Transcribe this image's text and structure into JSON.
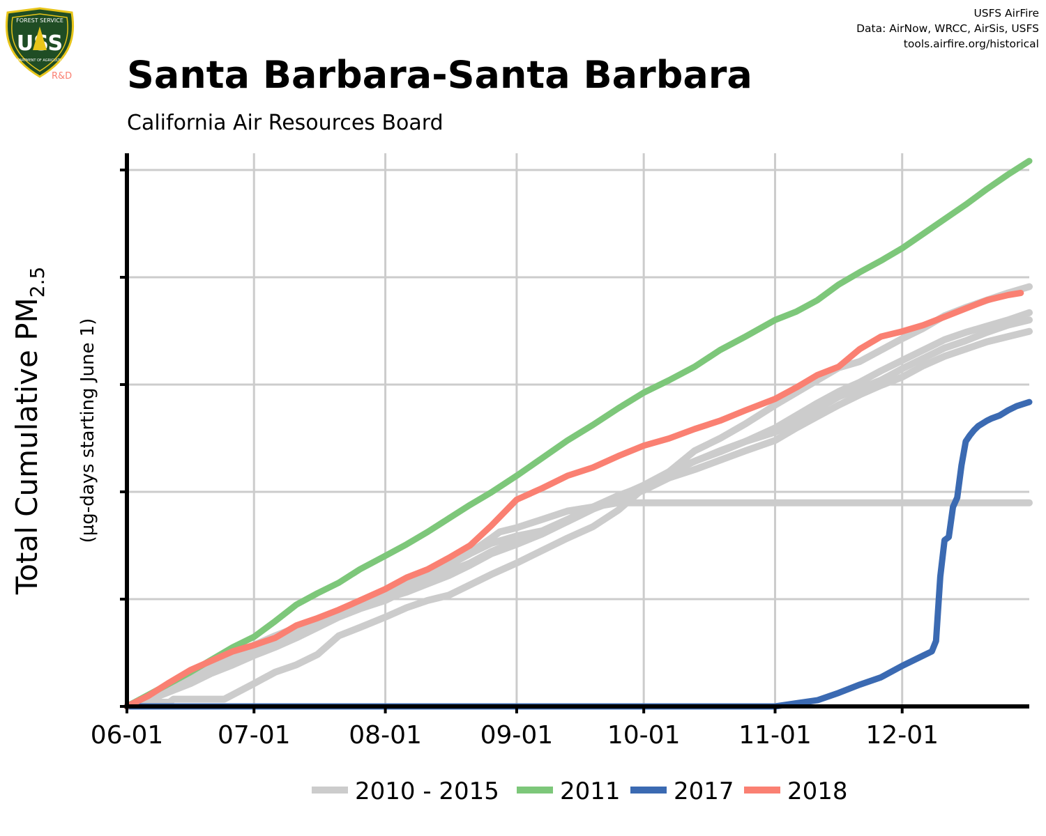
{
  "credits": [
    "USFS AirFire",
    "Data: AirNow, WRCC, AirSis, USFS",
    "tools.airfire.org/historical"
  ],
  "logo": {
    "top_text": "FOREST SERVICE",
    "letters": "USS",
    "bottom_text": "DEPARTMENT OF AGRICULTURE",
    "tag": "R&D",
    "icon": "usfs-shield-icon"
  },
  "colors": {
    "grid": "#cccccc",
    "hist": "#cccccc",
    "y2011": "#7dc77a",
    "y2017": "#3b6ab2",
    "y2018": "#fa8072",
    "axis": "#000000",
    "logo_bg": "#1f4d24",
    "logo_gold": "#e8c51a",
    "logo_tag": "#fa8072"
  },
  "chart_data": {
    "type": "line",
    "title": "Santa Barbara-Santa Barbara",
    "subtitle": "California Air Resources Board",
    "ylabel_main": "Total Cumulative PM",
    "ylabel_sub_script": "2.5",
    "ylabel_note": "(µg-days starting June 1)",
    "xlabel": "",
    "x_ticks": [
      "06-01",
      "07-01",
      "08-01",
      "09-01",
      "10-01",
      "11-01",
      "12-01"
    ],
    "x_tick_days": [
      0,
      30,
      61,
      92,
      122,
      153,
      183
    ],
    "xlim_days": [
      0,
      213
    ],
    "y_tick_count": 6,
    "ylim": [
      0,
      5.15
    ],
    "grid": true,
    "legend_position": "bottom",
    "legend": [
      "2010 - 2015",
      "2011",
      "2017",
      "2018"
    ],
    "series": [
      {
        "name": "2010 - 2015",
        "group": "hist",
        "x": [
          0,
          5,
          10,
          15,
          20,
          25,
          30,
          35,
          40,
          45,
          50,
          55,
          61,
          66,
          71,
          76,
          81,
          86,
          92,
          98,
          104,
          110,
          116,
          122,
          128,
          134,
          140,
          146,
          153,
          158,
          163,
          168,
          173,
          178,
          183,
          188,
          193,
          198,
          203,
          208,
          213
        ],
        "y": [
          0,
          0.06,
          0.14,
          0.22,
          0.32,
          0.4,
          0.49,
          0.57,
          0.66,
          0.76,
          0.86,
          0.94,
          1.02,
          1.12,
          1.21,
          1.3,
          1.38,
          1.49,
          1.59,
          1.68,
          1.78,
          1.9,
          2.02,
          2.13,
          2.26,
          2.36,
          2.46,
          2.55,
          2.64,
          2.74,
          2.86,
          2.98,
          3.06,
          3.14,
          3.25,
          3.35,
          3.45,
          3.52,
          3.6,
          3.67,
          3.72
        ]
      },
      {
        "name": "2010 - 2015",
        "group": "hist",
        "x": [
          0,
          5,
          10,
          15,
          20,
          25,
          30,
          35,
          40,
          45,
          50,
          55,
          61,
          66,
          71,
          76,
          81,
          86,
          92,
          98,
          104,
          110,
          116,
          122,
          128,
          134,
          140,
          146,
          153,
          158,
          163,
          168,
          173,
          178,
          183,
          188,
          193,
          198,
          203,
          208,
          213
        ],
        "y": [
          0,
          0.08,
          0.17,
          0.26,
          0.35,
          0.45,
          0.55,
          0.64,
          0.72,
          0.8,
          0.88,
          0.96,
          1.04,
          1.1,
          1.18,
          1.26,
          1.36,
          1.47,
          1.56,
          1.66,
          1.78,
          1.9,
          1.99,
          2.08,
          2.2,
          2.28,
          2.37,
          2.46,
          2.56,
          2.68,
          2.79,
          2.9,
          3.0,
          3.09,
          3.17,
          3.28,
          3.37,
          3.44,
          3.51,
          3.56,
          3.61
        ]
      },
      {
        "name": "2010 - 2015",
        "group": "hist",
        "x": [
          0,
          5,
          10,
          11,
          23,
          30,
          35,
          40,
          45,
          50,
          55,
          61,
          66,
          71,
          76,
          81,
          86,
          92,
          98,
          104,
          110,
          116,
          122,
          128,
          134,
          140,
          146,
          153,
          158,
          163,
          168,
          173,
          178,
          183,
          188,
          193,
          198,
          203,
          208,
          213
        ],
        "y": [
          0,
          0.04,
          0.04,
          0.07,
          0.07,
          0.22,
          0.33,
          0.4,
          0.5,
          0.68,
          0.76,
          0.86,
          0.95,
          1.02,
          1.07,
          1.17,
          1.27,
          1.38,
          1.5,
          1.62,
          1.73,
          1.89,
          2.1,
          2.26,
          2.46,
          2.58,
          2.72,
          2.9,
          3.02,
          3.14,
          3.26,
          3.32,
          3.43,
          3.54,
          3.64,
          3.76,
          3.84,
          3.91,
          3.98,
          4.04
        ]
      },
      {
        "name": "2010 - 2015",
        "group": "hist",
        "x": [
          0,
          5,
          10,
          15,
          20,
          25,
          30,
          35,
          40,
          45,
          50,
          55,
          61,
          66,
          71,
          76,
          81,
          86,
          92,
          98,
          104,
          110,
          116,
          122,
          128,
          134,
          140,
          146,
          153,
          158,
          163,
          168,
          173,
          178,
          183,
          188,
          193,
          198,
          203,
          208,
          213
        ],
        "y": [
          0,
          0.1,
          0.19,
          0.29,
          0.39,
          0.48,
          0.59,
          0.68,
          0.76,
          0.84,
          0.92,
          1.0,
          1.09,
          1.18,
          1.27,
          1.36,
          1.47,
          1.57,
          1.64,
          1.69,
          1.8,
          1.92,
          2.03,
          2.12,
          2.24,
          2.36,
          2.45,
          2.55,
          2.68,
          2.8,
          2.92,
          3.03,
          3.12,
          3.23,
          3.33,
          3.43,
          3.53,
          3.6,
          3.66,
          3.72,
          3.79
        ]
      },
      {
        "name": "2010 - 2015",
        "group": "hist",
        "x": [
          0,
          5,
          10,
          15,
          20,
          25,
          30,
          35,
          40,
          45,
          50,
          55,
          61,
          66,
          71,
          76,
          81,
          86,
          88,
          92,
          98,
          104,
          110,
          116,
          122,
          213
        ],
        "y": [
          0,
          0.07,
          0.16,
          0.25,
          0.35,
          0.44,
          0.54,
          0.62,
          0.72,
          0.81,
          0.9,
          0.97,
          1.08,
          1.18,
          1.27,
          1.35,
          1.48,
          1.62,
          1.68,
          1.72,
          1.8,
          1.88,
          1.92,
          1.96,
          1.96,
          1.96
        ]
      },
      {
        "name": "2011",
        "group": "y2011",
        "x": [
          0,
          5,
          10,
          15,
          20,
          25,
          30,
          35,
          40,
          45,
          50,
          55,
          61,
          66,
          71,
          76,
          81,
          86,
          92,
          98,
          104,
          110,
          116,
          122,
          128,
          134,
          140,
          146,
          153,
          158,
          163,
          168,
          173,
          178,
          183,
          188,
          193,
          198,
          203,
          208,
          213
        ],
        "y": [
          0,
          0.11,
          0.22,
          0.33,
          0.45,
          0.57,
          0.67,
          0.82,
          0.98,
          1.09,
          1.19,
          1.32,
          1.45,
          1.56,
          1.68,
          1.81,
          1.94,
          2.06,
          2.22,
          2.39,
          2.56,
          2.71,
          2.87,
          3.02,
          3.14,
          3.27,
          3.43,
          3.56,
          3.72,
          3.8,
          3.91,
          4.06,
          4.18,
          4.29,
          4.41,
          4.55,
          4.69,
          4.83,
          4.98,
          5.12,
          5.25
        ]
      },
      {
        "name": "2017",
        "group": "y2017",
        "x": [
          0,
          150,
          153,
          158,
          163,
          168,
          173,
          178,
          183,
          188,
          190,
          191,
          192,
          193,
          194,
          195,
          196,
          197,
          198,
          199,
          200,
          201,
          203,
          204,
          206,
          208,
          210,
          213
        ],
        "y": [
          0,
          0,
          0,
          0.03,
          0.06,
          0.13,
          0.21,
          0.28,
          0.39,
          0.49,
          0.53,
          0.63,
          1.25,
          1.6,
          1.63,
          1.92,
          2.01,
          2.32,
          2.55,
          2.61,
          2.66,
          2.7,
          2.75,
          2.77,
          2.8,
          2.85,
          2.89,
          2.93
        ]
      },
      {
        "name": "2018",
        "group": "y2018",
        "x": [
          0,
          5,
          10,
          15,
          20,
          25,
          30,
          35,
          40,
          45,
          50,
          55,
          61,
          66,
          71,
          76,
          81,
          86,
          92,
          98,
          104,
          110,
          116,
          122,
          128,
          134,
          140,
          146,
          153,
          158,
          163,
          168,
          173,
          178,
          183,
          188,
          193,
          198,
          203,
          208,
          211
        ],
        "y": [
          0,
          0.1,
          0.23,
          0.35,
          0.44,
          0.53,
          0.59,
          0.66,
          0.78,
          0.85,
          0.93,
          1.02,
          1.13,
          1.24,
          1.32,
          1.43,
          1.55,
          1.74,
          1.99,
          2.1,
          2.22,
          2.3,
          2.41,
          2.51,
          2.58,
          2.67,
          2.75,
          2.85,
          2.96,
          3.07,
          3.19,
          3.27,
          3.44,
          3.56,
          3.61,
          3.67,
          3.75,
          3.83,
          3.91,
          3.96,
          3.98
        ]
      }
    ]
  }
}
